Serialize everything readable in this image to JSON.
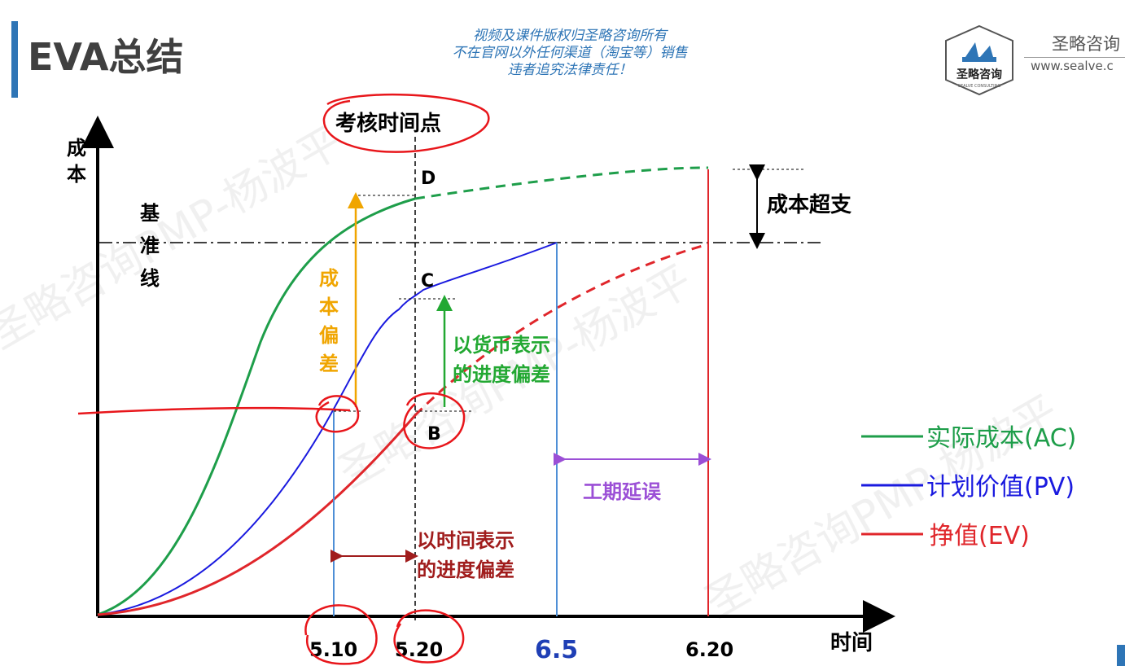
{
  "title": "EVA总结",
  "notice": [
    "视频及课件版权归圣略咨询所有",
    "不在官网以外任何渠道（淘宝等）销售",
    "违者追究法律责任！"
  ],
  "brand": {
    "name": "圣略咨询",
    "url": "www.sealve.c",
    "logo_text": "圣略咨询",
    "logo_sub": "SEALVE CONSULTING"
  },
  "watermark": "圣略咨询PMP-杨波平",
  "axes": {
    "y_label": "成本",
    "x_label": "时间"
  },
  "labels": {
    "check_point": "考核时间点",
    "baseline": "基准线",
    "cost_variance": "成本偏差",
    "cost_overrun": "成本超支",
    "schedule_var_money": [
      "以货币表示",
      "的进度偏差"
    ],
    "schedule_var_time": [
      "以时间表示",
      "的进度偏差"
    ],
    "delay": "工期延误",
    "point_d": "D",
    "point_c": "C",
    "point_b": "B"
  },
  "ticks": [
    "5.10",
    "5.20",
    "6.5",
    "6.20"
  ],
  "legend": [
    {
      "label": "实际成本(AC)",
      "color": "#1e9e4a"
    },
    {
      "label": "计划价值(PV)",
      "color": "#1a1adf"
    },
    {
      "label": "挣值(EV)",
      "color": "#e0262b"
    }
  ],
  "colors": {
    "ac": "#1e9e4a",
    "pv": "#1a1adf",
    "ev": "#e0262b",
    "cost_variance": "#f0a500",
    "money_variance": "#22a832",
    "time_variance": "#a01c1c",
    "delay": "#9b4fd6",
    "tick_65": "#1f3fb5",
    "annotation": "#e8161b"
  }
}
